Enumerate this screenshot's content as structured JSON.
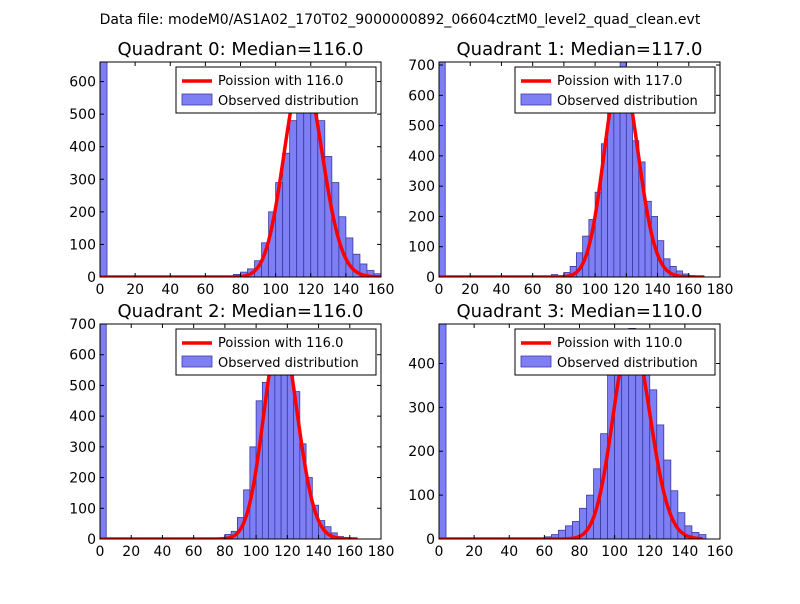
{
  "figure": {
    "suptitle": "Data file: modeM0/AS1A02_170T02_9000000892_06604cztM0_level2_quad_clean.evt"
  },
  "colors": {
    "bar_fill": "#7f7ff5",
    "bar_edge": "#3a3aa0",
    "poisson_line": "#ff0000",
    "axes": "#000000",
    "background": "#ffffff"
  },
  "chart_data": [
    {
      "type": "bar",
      "title": "Quadrant 0: Median=116.0",
      "xlabel": "",
      "ylabel": "",
      "xlim": [
        0,
        160
      ],
      "ylim": [
        0,
        660
      ],
      "xticks": [
        "0",
        "20",
        "40",
        "60",
        "80",
        "100",
        "120",
        "140",
        "160"
      ],
      "xtick_values": [
        0,
        20,
        40,
        60,
        80,
        100,
        120,
        140,
        160
      ],
      "yticks": [
        "0",
        "100",
        "200",
        "300",
        "400",
        "500",
        "600"
      ],
      "ytick_values": [
        0,
        100,
        200,
        300,
        400,
        500,
        600
      ],
      "bin_width": 4,
      "series": [
        {
          "name": "Observed distribution",
          "kind": "histogram",
          "bin_starts": [
            0,
            76,
            80,
            84,
            88,
            92,
            96,
            100,
            104,
            108,
            112,
            116,
            120,
            124,
            128,
            132,
            136,
            140,
            144,
            148,
            152,
            156
          ],
          "values": [
            660,
            8,
            15,
            25,
            50,
            105,
            200,
            290,
            380,
            480,
            580,
            630,
            560,
            480,
            370,
            290,
            185,
            120,
            70,
            40,
            20,
            10
          ]
        },
        {
          "name": "Poission with 116.0",
          "kind": "poisson",
          "mean": 116.0,
          "peak": 630,
          "x_range": [
            0,
            160
          ]
        }
      ],
      "legend": [
        "Poission with 116.0",
        "Observed distribution"
      ],
      "legend_position": "top-right"
    },
    {
      "type": "bar",
      "title": "Quadrant 1: Median=117.0",
      "xlabel": "",
      "ylabel": "",
      "xlim": [
        0,
        180
      ],
      "ylim": [
        0,
        710
      ],
      "xticks": [
        "0",
        "20",
        "40",
        "60",
        "80",
        "100",
        "120",
        "140",
        "160",
        "180"
      ],
      "xtick_values": [
        0,
        20,
        40,
        60,
        80,
        100,
        120,
        140,
        160,
        180
      ],
      "yticks": [
        "0",
        "100",
        "200",
        "300",
        "400",
        "500",
        "600",
        "700"
      ],
      "ytick_values": [
        0,
        100,
        200,
        300,
        400,
        500,
        600,
        700
      ],
      "bin_width": 4,
      "series": [
        {
          "name": "Observed distribution",
          "kind": "histogram",
          "bin_starts": [
            0,
            72,
            80,
            84,
            88,
            92,
            96,
            100,
            104,
            108,
            112,
            116,
            120,
            124,
            128,
            132,
            136,
            140,
            144,
            148,
            152,
            156,
            160
          ],
          "values": [
            710,
            8,
            15,
            35,
            80,
            135,
            190,
            280,
            440,
            640,
            600,
            710,
            600,
            450,
            380,
            250,
            200,
            120,
            60,
            35,
            20,
            10,
            5
          ]
        },
        {
          "name": "Poission with 117.0",
          "kind": "poisson",
          "mean": 117.0,
          "peak": 680,
          "x_range": [
            0,
            170
          ]
        }
      ],
      "legend": [
        "Poission with 117.0",
        "Observed distribution"
      ],
      "legend_position": "top-right"
    },
    {
      "type": "bar",
      "title": "Quadrant 2: Median=116.0",
      "xlabel": "",
      "ylabel": "",
      "xlim": [
        0,
        180
      ],
      "ylim": [
        0,
        700
      ],
      "xticks": [
        "0",
        "20",
        "40",
        "60",
        "80",
        "100",
        "120",
        "140",
        "160",
        "180"
      ],
      "xtick_values": [
        0,
        20,
        40,
        60,
        80,
        100,
        120,
        140,
        160,
        180
      ],
      "yticks": [
        "0",
        "100",
        "200",
        "300",
        "400",
        "500",
        "600",
        "700"
      ],
      "ytick_values": [
        0,
        100,
        200,
        300,
        400,
        500,
        600,
        700
      ],
      "bin_width": 4,
      "series": [
        {
          "name": "Observed distribution",
          "kind": "histogram",
          "bin_starts": [
            0,
            80,
            84,
            88,
            92,
            96,
            100,
            104,
            108,
            112,
            116,
            120,
            124,
            128,
            132,
            136,
            140,
            144,
            148,
            152,
            156
          ],
          "values": [
            700,
            15,
            25,
            70,
            160,
            300,
            450,
            510,
            590,
            660,
            640,
            560,
            480,
            310,
            200,
            110,
            60,
            40,
            20,
            8,
            5
          ]
        },
        {
          "name": "Poission with 116.0",
          "kind": "poisson",
          "mean": 116.0,
          "peak": 670,
          "x_range": [
            0,
            165
          ]
        }
      ],
      "legend": [
        "Poission with 116.0",
        "Observed distribution"
      ],
      "legend_position": "top-right"
    },
    {
      "type": "bar",
      "title": "Quadrant 3: Median=110.0",
      "xlabel": "",
      "ylabel": "",
      "xlim": [
        0,
        160
      ],
      "ylim": [
        0,
        490
      ],
      "xticks": [
        "0",
        "20",
        "40",
        "60",
        "80",
        "100",
        "120",
        "140",
        "160"
      ],
      "xtick_values": [
        0,
        20,
        40,
        60,
        80,
        100,
        120,
        140,
        160
      ],
      "yticks": [
        "0",
        "100",
        "200",
        "300",
        "400"
      ],
      "ytick_values": [
        0,
        100,
        200,
        300,
        400
      ],
      "bin_width": 4,
      "series": [
        {
          "name": "Observed distribution",
          "kind": "histogram",
          "bin_starts": [
            0,
            60,
            64,
            68,
            72,
            76,
            80,
            84,
            88,
            92,
            96,
            100,
            104,
            108,
            112,
            116,
            120,
            124,
            128,
            132,
            136,
            140,
            144,
            148
          ],
          "values": [
            490,
            5,
            10,
            20,
            30,
            40,
            70,
            100,
            160,
            240,
            380,
            460,
            400,
            480,
            450,
            420,
            340,
            260,
            180,
            110,
            60,
            30,
            15,
            10
          ]
        },
        {
          "name": "Poission with 110.0",
          "kind": "poisson",
          "mean": 110.0,
          "peak": 465,
          "x_range": [
            0,
            150
          ]
        }
      ],
      "legend": [
        "Poission with 110.0",
        "Observed distribution"
      ],
      "legend_position": "top-right"
    }
  ]
}
